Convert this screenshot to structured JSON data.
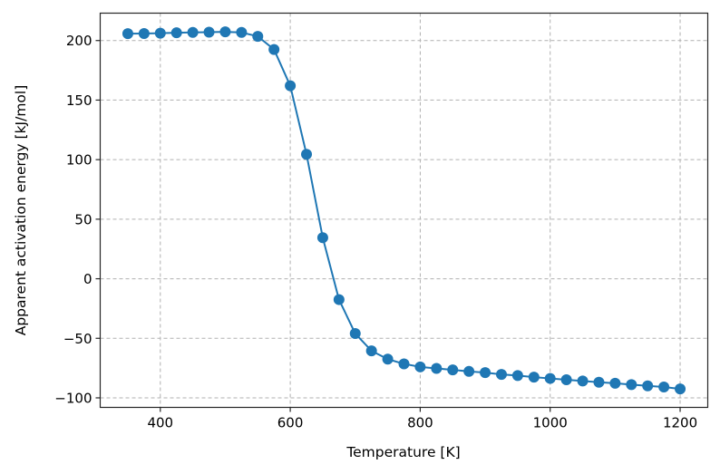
{
  "chart_data": {
    "type": "line",
    "title": "",
    "xlabel": "Temperature [K]",
    "ylabel": "Apparent activation energy [kJ/mol]",
    "xlim": [
      307.5,
      1242.5
    ],
    "ylim": [
      -108,
      223
    ],
    "grid": true,
    "legend": null,
    "xticks": [
      400,
      600,
      800,
      1000,
      1200
    ],
    "yticks": [
      -100,
      -50,
      0,
      50,
      100,
      150,
      200
    ],
    "xtick_labels": [
      "400",
      "600",
      "800",
      "1000",
      "1200"
    ],
    "ytick_labels": [
      "−100",
      "−50",
      "0",
      "50",
      "100",
      "150",
      "200"
    ],
    "series": [
      {
        "name": "Apparent activation energy",
        "color": "#1f77b4",
        "marker": "circle",
        "x": [
          350,
          375,
          400,
          425,
          450,
          475,
          500,
          525,
          550,
          575,
          600,
          625,
          650,
          675,
          700,
          725,
          750,
          775,
          800,
          825,
          850,
          875,
          900,
          925,
          950,
          975,
          1000,
          1025,
          1050,
          1075,
          1100,
          1125,
          1150,
          1175,
          1200
        ],
        "values": [
          205.8,
          205.9,
          206.2,
          206.5,
          206.8,
          207.0,
          207.3,
          206.8,
          203.5,
          192.5,
          162.0,
          104.5,
          34.5,
          -17.5,
          -46.0,
          -60.5,
          -67.5,
          -71.5,
          -74.0,
          -75.3,
          -76.5,
          -77.8,
          -78.8,
          -80.3,
          -81.3,
          -82.6,
          -83.7,
          -84.8,
          -85.8,
          -86.9,
          -87.7,
          -88.9,
          -89.9,
          -90.9,
          -92.5
        ]
      }
    ]
  }
}
